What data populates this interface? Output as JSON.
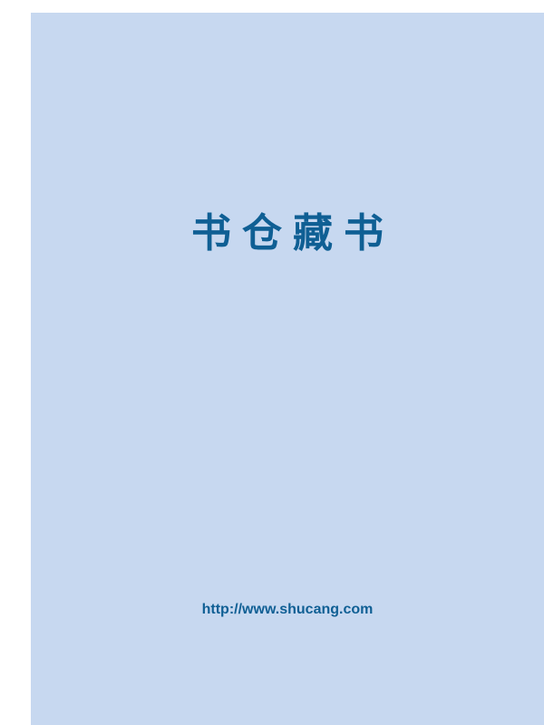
{
  "cover": {
    "title": "书仓藏书",
    "url": "http://www.shucang.com"
  },
  "colors": {
    "background": "#c7d8f0",
    "text": "#0f5f94"
  }
}
